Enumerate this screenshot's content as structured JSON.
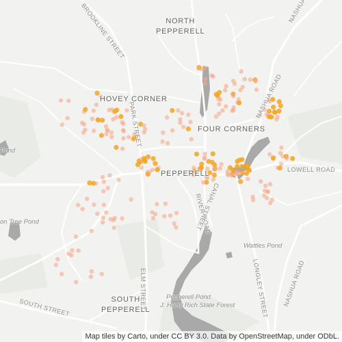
{
  "map": {
    "places": {
      "north_pepperell": [
        "NORTH",
        "PEPPERELL"
      ],
      "hovey_corner": "HOVEY CORNER",
      "four_corners": "FOUR CORNERS",
      "pepperell": "PEPPERELL",
      "south_pepperell": [
        "SOUTH",
        "PEPPERELL"
      ]
    },
    "roads": {
      "brookline_street": "BROOKLINE STREET",
      "park_street": "PARK STREET",
      "nashua_road_top": "NASHUA ROAD",
      "nashua_road_mid": "NASHUA ROAD",
      "nashua_road_right": "NASHUA ROAD",
      "lowell_road": "LOWELL ROAD",
      "river_road": "RIVER ROAD",
      "canal_street": "CANAL STREET",
      "elm_street": "ELM STREET",
      "longley_street": "LONGLEY STREET",
      "south_street": "SOUTH STREET"
    },
    "water": {
      "tree_pond": "on Tree Pond",
      "pond_left": "Pond",
      "wattles_pond": "Wattles Pond",
      "pepperell_pond": "Pepperell Pond",
      "state_forest": "J. Harry Rich State Forest"
    },
    "attribution": "Map tiles by Carto, under CC BY 3.0. Data by OpenStreetMap, under ODbL.",
    "colors": {
      "dot_light": "#f7a98a",
      "dot_dark": "#f5a623",
      "water": "#a9a9a9"
    }
  }
}
